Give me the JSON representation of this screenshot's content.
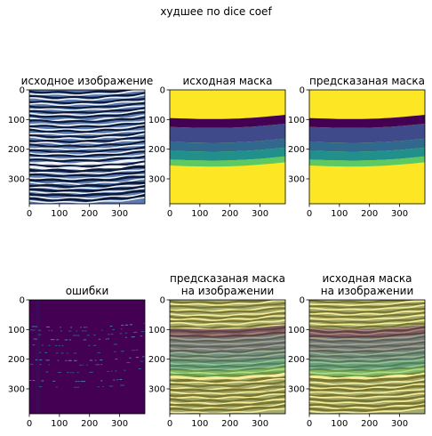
{
  "suptitle": "худшее по dice coef",
  "colors": {
    "seismic_dark": "#0b1a3a",
    "seismic_mid": "#5a7ab0",
    "seismic_light": "#f2f4f8",
    "mask_yellow": "#fde725",
    "mask_purple": "#440154",
    "mask_blue": "#3b528b",
    "mask_teal": "#21908d",
    "mask_green": "#5dc963",
    "error_bg": "#440154"
  },
  "chart_data": [
    {
      "type": "heatmap",
      "title": "исходное изображение",
      "content": "seismic",
      "xlim": [
        0,
        384
      ],
      "ylim": [
        384,
        0
      ],
      "xticks": [
        0,
        100,
        200,
        300
      ],
      "yticks": [
        0,
        100,
        200,
        300
      ],
      "grid": false
    },
    {
      "type": "heatmap",
      "title": "исходная маска",
      "content": "mask",
      "xlim": [
        0,
        384
      ],
      "ylim": [
        384,
        0
      ],
      "xticks": [
        0,
        100,
        200,
        300
      ],
      "yticks": [
        0,
        100,
        200,
        300
      ],
      "layer_boundaries_depth": [
        0,
        95,
        125,
        175,
        205,
        235,
        255,
        384
      ],
      "grid": false
    },
    {
      "type": "heatmap",
      "title": "предсказаная маска",
      "content": "mask",
      "xlim": [
        0,
        384
      ],
      "ylim": [
        384,
        0
      ],
      "xticks": [
        0,
        100,
        200,
        300
      ],
      "yticks": [
        0,
        100,
        200,
        300
      ],
      "layer_boundaries_depth": [
        0,
        95,
        125,
        175,
        205,
        235,
        255,
        384
      ],
      "grid": false
    },
    {
      "type": "heatmap",
      "title": "ошибки",
      "content": "errors",
      "xlim": [
        0,
        384
      ],
      "ylim": [
        384,
        0
      ],
      "xticks": [
        0,
        100,
        200,
        300
      ],
      "yticks": [
        0,
        100,
        200,
        300
      ],
      "grid": false
    },
    {
      "type": "heatmap",
      "title": "предсказаная маска\nна изображении",
      "content": "overlay",
      "xlim": [
        0,
        384
      ],
      "ylim": [
        384,
        0
      ],
      "xticks": [
        0,
        100,
        200,
        300
      ],
      "yticks": [
        0,
        100,
        200,
        300
      ],
      "grid": false
    },
    {
      "type": "heatmap",
      "title": "исходная маска\nна изображении",
      "content": "overlay",
      "xlim": [
        0,
        384
      ],
      "ylim": [
        384,
        0
      ],
      "xticks": [
        0,
        100,
        200,
        300
      ],
      "yticks": [
        0,
        100,
        200,
        300
      ],
      "grid": false
    }
  ]
}
